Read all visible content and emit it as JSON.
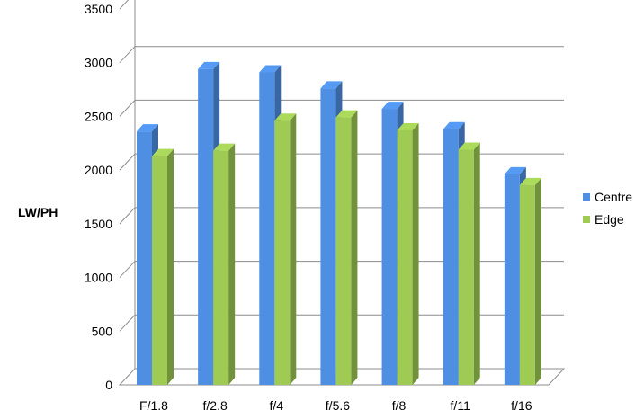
{
  "chart_data": {
    "type": "bar",
    "categories": [
      "F/1.8",
      "f/2.8",
      "f/4",
      "f/5.6",
      "f/8",
      "f/11",
      "f/16"
    ],
    "series": [
      {
        "name": "Centre",
        "values": [
          2360,
          2940,
          2910,
          2760,
          2570,
          2380,
          1960
        ],
        "color": "#4f8fe3"
      },
      {
        "name": "Edge",
        "values": [
          2130,
          2180,
          2460,
          2490,
          2370,
          2190,
          1860
        ],
        "color": "#9fca53"
      }
    ],
    "ylabel": "LW/PH",
    "xlabel": "",
    "title": "",
    "ylim": [
      0,
      3500
    ],
    "yticks": [
      0,
      500,
      1000,
      1500,
      2000,
      2500,
      3000,
      3500
    ],
    "grid": true,
    "legend": "right",
    "style": "3d-clustered-column"
  }
}
